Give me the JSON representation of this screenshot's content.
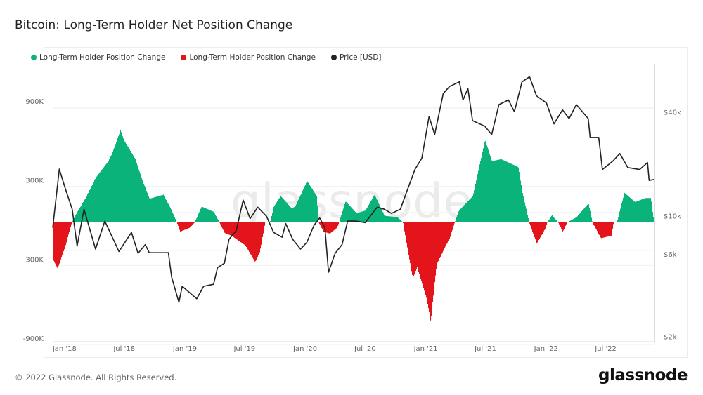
{
  "title": "Bitcoin: Long-Term Holder Net Position Change",
  "footer": "© 2022 Glassnode. All Rights Reserved.",
  "logo": "glassnode",
  "watermark": "glassnode",
  "chart_data": {
    "type": "bar+line",
    "title": "Bitcoin: Long-Term Holder Net Position Change",
    "legend": [
      {
        "label": "Long-Term Holder Position Change",
        "color": "#0ab37a"
      },
      {
        "label": "Long-Term Holder Position Change",
        "color": "#e3141a"
      },
      {
        "label": "Price [USD]",
        "color": "#222222"
      }
    ],
    "legend_position": "top-left",
    "grid": true,
    "xlim": [
      "2017-11-26",
      "2022-11-24"
    ],
    "x_ticks": [
      {
        "date": "2018-01-01",
        "label": "Jan '18"
      },
      {
        "date": "2018-07-01",
        "label": "Jul '18"
      },
      {
        "date": "2019-01-01",
        "label": "Jan '19"
      },
      {
        "date": "2019-07-01",
        "label": "Jul '19"
      },
      {
        "date": "2020-01-01",
        "label": "Jan '20"
      },
      {
        "date": "2020-07-01",
        "label": "Jul '20"
      },
      {
        "date": "2021-01-01",
        "label": "Jan '21"
      },
      {
        "date": "2021-07-01",
        "label": "Jul '21"
      },
      {
        "date": "2022-01-01",
        "label": "Jan '22"
      },
      {
        "date": "2022-07-01",
        "label": "Jul '22"
      }
    ],
    "y_left": {
      "ylim": [
        -900000,
        900000
      ],
      "ticks": [
        {
          "v": 900000,
          "label": "900K"
        },
        {
          "v": 300000,
          "label": "300K"
        },
        {
          "v": -300000,
          "label": "-300K"
        },
        {
          "v": -900000,
          "label": "-900K"
        }
      ]
    },
    "y_right": {
      "scale": "log",
      "ylim": [
        1950,
        73000
      ],
      "ticks": [
        {
          "v": 40000,
          "label": "$40k"
        },
        {
          "v": 10000,
          "label": "$10k"
        },
        {
          "v": 6000,
          "label": "$6k"
        },
        {
          "v": 2000,
          "label": "$2k"
        }
      ]
    },
    "position_change": [
      [
        "2017-11-26",
        -280000
      ],
      [
        "2017-12-10",
        -350000
      ],
      [
        "2018-01-03",
        -175000
      ],
      [
        "2018-01-22",
        0
      ],
      [
        "2018-02-08",
        80000
      ],
      [
        "2018-03-06",
        190000
      ],
      [
        "2018-04-05",
        340000
      ],
      [
        "2018-05-13",
        465000
      ],
      [
        "2018-05-24",
        520000
      ],
      [
        "2018-06-19",
        700000
      ],
      [
        "2018-06-29",
        625000
      ],
      [
        "2018-08-03",
        480000
      ],
      [
        "2018-08-24",
        320000
      ],
      [
        "2018-09-15",
        180000
      ],
      [
        "2018-10-27",
        210000
      ],
      [
        "2018-11-18",
        107000
      ],
      [
        "2018-12-07",
        0
      ],
      [
        "2018-12-17",
        -70000
      ],
      [
        "2019-01-15",
        -40000
      ],
      [
        "2019-01-30",
        0
      ],
      [
        "2019-02-20",
        120000
      ],
      [
        "2019-03-29",
        80000
      ],
      [
        "2019-04-15",
        0
      ],
      [
        "2019-05-01",
        -80000
      ],
      [
        "2019-05-21",
        -100000
      ],
      [
        "2019-07-03",
        -175000
      ],
      [
        "2019-08-01",
        -300000
      ],
      [
        "2019-08-15",
        -230000
      ],
      [
        "2019-09-01",
        0
      ],
      [
        "2019-09-17",
        10000
      ],
      [
        "2019-09-27",
        120000
      ],
      [
        "2019-10-18",
        200000
      ],
      [
        "2019-11-20",
        107000
      ],
      [
        "2019-12-01",
        120000
      ],
      [
        "2020-01-06",
        315000
      ],
      [
        "2020-02-04",
        200000
      ],
      [
        "2020-02-10",
        0
      ],
      [
        "2020-02-25",
        -70000
      ],
      [
        "2020-03-15",
        -85000
      ],
      [
        "2020-04-06",
        -40000
      ],
      [
        "2020-04-12",
        0
      ],
      [
        "2020-05-02",
        160000
      ],
      [
        "2020-06-04",
        70000
      ],
      [
        "2020-07-01",
        90000
      ],
      [
        "2020-07-29",
        210000
      ],
      [
        "2020-08-28",
        50000
      ],
      [
        "2020-10-06",
        40000
      ],
      [
        "2020-10-23",
        0
      ],
      [
        "2020-11-08",
        -230000
      ],
      [
        "2020-11-22",
        -425000
      ],
      [
        "2020-12-05",
        -340000
      ],
      [
        "2021-01-04",
        -590000
      ],
      [
        "2021-01-15",
        -750000
      ],
      [
        "2021-02-02",
        -320000
      ],
      [
        "2021-03-01",
        -180000
      ],
      [
        "2021-03-14",
        -120000
      ],
      [
        "2021-03-29",
        0
      ],
      [
        "2021-04-11",
        90000
      ],
      [
        "2021-05-23",
        200000
      ],
      [
        "2021-06-29",
        625000
      ],
      [
        "2021-07-20",
        465000
      ],
      [
        "2021-08-17",
        480000
      ],
      [
        "2021-10-08",
        420000
      ],
      [
        "2021-10-20",
        235000
      ],
      [
        "2021-11-10",
        0
      ],
      [
        "2021-12-03",
        -160000
      ],
      [
        "2021-12-28",
        -50000
      ],
      [
        "2022-01-04",
        0
      ],
      [
        "2022-01-18",
        55000
      ],
      [
        "2022-02-06",
        0
      ],
      [
        "2022-02-20",
        -70000
      ],
      [
        "2022-03-05",
        0
      ],
      [
        "2022-04-03",
        40000
      ],
      [
        "2022-05-09",
        145000
      ],
      [
        "2022-05-21",
        0
      ],
      [
        "2022-06-16",
        -120000
      ],
      [
        "2022-07-18",
        -100000
      ],
      [
        "2022-07-24",
        0
      ],
      [
        "2022-08-03",
        0
      ],
      [
        "2022-08-26",
        225000
      ],
      [
        "2022-09-27",
        155000
      ],
      [
        "2022-10-29",
        185000
      ],
      [
        "2022-11-14",
        185000
      ],
      [
        "2022-11-24",
        0
      ]
    ],
    "price": [
      [
        "2017-11-26",
        8500
      ],
      [
        "2017-12-16",
        18600
      ],
      [
        "2018-01-03",
        14400
      ],
      [
        "2018-01-24",
        10900
      ],
      [
        "2018-02-08",
        6650
      ],
      [
        "2018-03-01",
        10900
      ],
      [
        "2018-04-05",
        6400
      ],
      [
        "2018-05-03",
        9300
      ],
      [
        "2018-06-15",
        6200
      ],
      [
        "2018-07-23",
        8000
      ],
      [
        "2018-08-12",
        6050
      ],
      [
        "2018-09-03",
        6800
      ],
      [
        "2018-09-15",
        6100
      ],
      [
        "2018-11-12",
        6100
      ],
      [
        "2018-11-22",
        4400
      ],
      [
        "2018-12-14",
        3150
      ],
      [
        "2018-12-24",
        3900
      ],
      [
        "2019-02-06",
        3300
      ],
      [
        "2019-02-27",
        3900
      ],
      [
        "2019-03-29",
        4000
      ],
      [
        "2019-04-10",
        5000
      ],
      [
        "2019-05-01",
        5300
      ],
      [
        "2019-05-15",
        7300
      ],
      [
        "2019-06-06",
        8200
      ],
      [
        "2019-06-27",
        12300
      ],
      [
        "2019-07-18",
        9600
      ],
      [
        "2019-08-10",
        11200
      ],
      [
        "2019-09-06",
        9900
      ],
      [
        "2019-09-27",
        8000
      ],
      [
        "2019-10-23",
        7500
      ],
      [
        "2019-11-03",
        9000
      ],
      [
        "2019-11-24",
        7300
      ],
      [
        "2019-12-18",
        6400
      ],
      [
        "2020-01-06",
        7000
      ],
      [
        "2020-01-28",
        8800
      ],
      [
        "2020-02-14",
        9700
      ],
      [
        "2020-03-01",
        8500
      ],
      [
        "2020-03-12",
        4700
      ],
      [
        "2020-04-01",
        6050
      ],
      [
        "2020-04-22",
        6800
      ],
      [
        "2020-05-09",
        9300
      ],
      [
        "2020-06-04",
        9300
      ],
      [
        "2020-07-01",
        9100
      ],
      [
        "2020-08-07",
        11200
      ],
      [
        "2020-08-28",
        10900
      ],
      [
        "2020-09-19",
        10300
      ],
      [
        "2020-10-16",
        10900
      ],
      [
        "2020-11-08",
        14400
      ],
      [
        "2020-11-29",
        18500
      ],
      [
        "2020-12-20",
        21500
      ],
      [
        "2021-01-11",
        37500
      ],
      [
        "2021-01-28",
        29500
      ],
      [
        "2021-02-23",
        51000
      ],
      [
        "2021-03-14",
        56000
      ],
      [
        "2021-04-13",
        59600
      ],
      [
        "2021-04-24",
        46800
      ],
      [
        "2021-05-09",
        54500
      ],
      [
        "2021-05-23",
        35500
      ],
      [
        "2021-06-29",
        33000
      ],
      [
        "2021-07-20",
        29500
      ],
      [
        "2021-08-11",
        44000
      ],
      [
        "2021-09-09",
        46800
      ],
      [
        "2021-09-27",
        40000
      ],
      [
        "2021-10-20",
        59600
      ],
      [
        "2021-11-12",
        63800
      ],
      [
        "2021-12-03",
        49500
      ],
      [
        "2022-01-02",
        45000
      ],
      [
        "2022-01-25",
        34000
      ],
      [
        "2022-02-20",
        41000
      ],
      [
        "2022-03-12",
        36500
      ],
      [
        "2022-04-03",
        44000
      ],
      [
        "2022-05-09",
        36500
      ],
      [
        "2022-05-15",
        28400
      ],
      [
        "2022-06-10",
        28400
      ],
      [
        "2022-06-21",
        18500
      ],
      [
        "2022-07-24",
        20800
      ],
      [
        "2022-08-13",
        22900
      ],
      [
        "2022-09-06",
        19000
      ],
      [
        "2022-10-12",
        18500
      ],
      [
        "2022-11-05",
        20300
      ],
      [
        "2022-11-10",
        16000
      ],
      [
        "2022-11-24",
        16200
      ]
    ]
  }
}
